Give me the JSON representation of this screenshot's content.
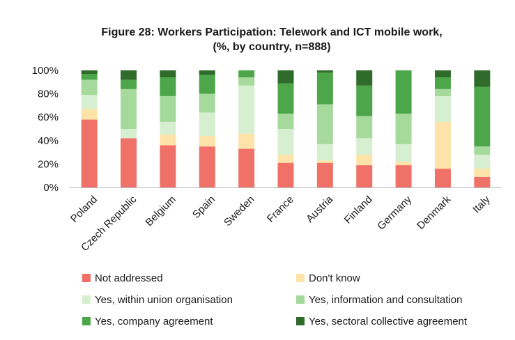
{
  "chart_data": {
    "type": "bar",
    "stacked": true,
    "title": "Figure 28: Workers Participation: Telework and ICT mobile work,",
    "subtitle": "(%, by country, n=888)",
    "categories": [
      "Poland",
      "Czech Republic",
      "Belgium",
      "Spain",
      "Sweden",
      "France",
      "Austria",
      "Finland",
      "Germany",
      "Denmark",
      "Italy"
    ],
    "ylim": [
      0,
      100
    ],
    "yticks": [
      "0%",
      "20%",
      "40%",
      "60%",
      "80%",
      "100%"
    ],
    "grid": false,
    "legend_position": "bottom",
    "series": [
      {
        "name": "Not addressed",
        "color": "#f07167",
        "values": [
          58,
          42,
          36,
          35,
          33,
          21,
          21,
          19,
          19,
          16,
          9
        ]
      },
      {
        "name": "Don't know",
        "color": "#fde3a7",
        "values": [
          9,
          0,
          9,
          9,
          13,
          7,
          2,
          9,
          3,
          40,
          7
        ]
      },
      {
        "name": "Yes, within union organisation",
        "color": "#d6efd0",
        "values": [
          12,
          8,
          11,
          20,
          41,
          22,
          14,
          14,
          15,
          22,
          12
        ]
      },
      {
        "name": "Yes, information and consultation",
        "color": "#a6d99c",
        "values": [
          13,
          34,
          22,
          16,
          7,
          13,
          34,
          19,
          26,
          6,
          7
        ]
      },
      {
        "name": "Yes, company agreement",
        "color": "#4ea64a",
        "values": [
          5,
          8,
          16,
          16,
          6,
          26,
          27,
          26,
          37,
          10,
          51
        ]
      },
      {
        "name": "Yes, sectoral collective agreement",
        "color": "#2f6b2a",
        "values": [
          3,
          8,
          6,
          4,
          0,
          11,
          2,
          13,
          0,
          6,
          14
        ]
      }
    ]
  }
}
